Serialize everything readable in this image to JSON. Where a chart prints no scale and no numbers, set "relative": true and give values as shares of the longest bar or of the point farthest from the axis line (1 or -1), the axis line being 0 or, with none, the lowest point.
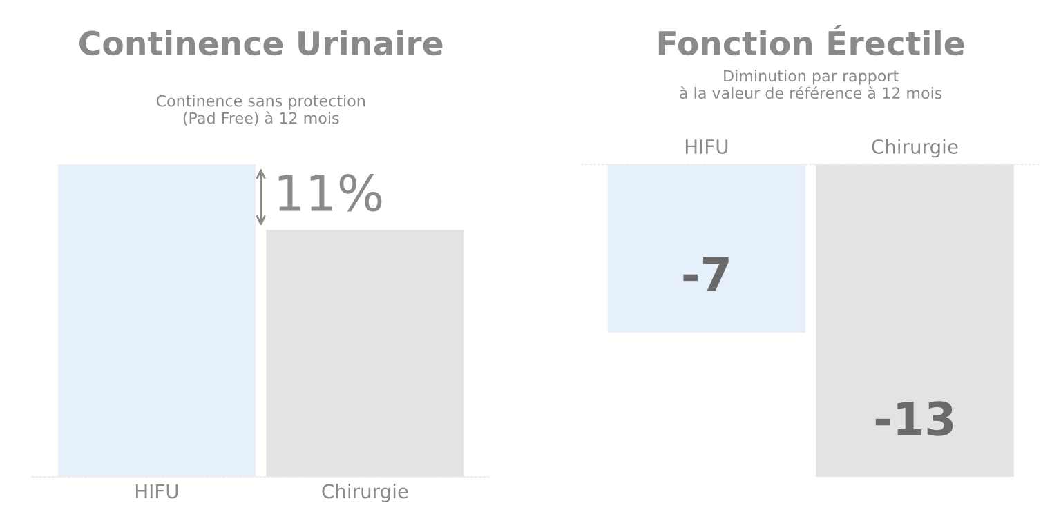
{
  "chart_data": [
    {
      "type": "bar",
      "title": "Continence Urinaire",
      "subtitle": "Continence sans protection\n(Pad Free) à 12 mois",
      "categories": [
        "HIFU",
        "Chirurgie"
      ],
      "colors": [
        "#e6f0fa",
        "#e3e3e3"
      ],
      "values": [
        1,
        0.79
      ],
      "relative": true,
      "annotations": [
        "11%"
      ],
      "grid": false,
      "legend": false
    },
    {
      "type": "bar",
      "title": "Fonction Érectile",
      "subtitle": "Diminution par rapport\nà la valeur de référence à 12 mois",
      "categories": [
        "HIFU",
        "Chirurgie"
      ],
      "colors": [
        "#e6f0fa",
        "#e3e3e3"
      ],
      "values": [
        -7,
        -13
      ],
      "data_labels": true,
      "grid": false,
      "legend": false
    }
  ]
}
